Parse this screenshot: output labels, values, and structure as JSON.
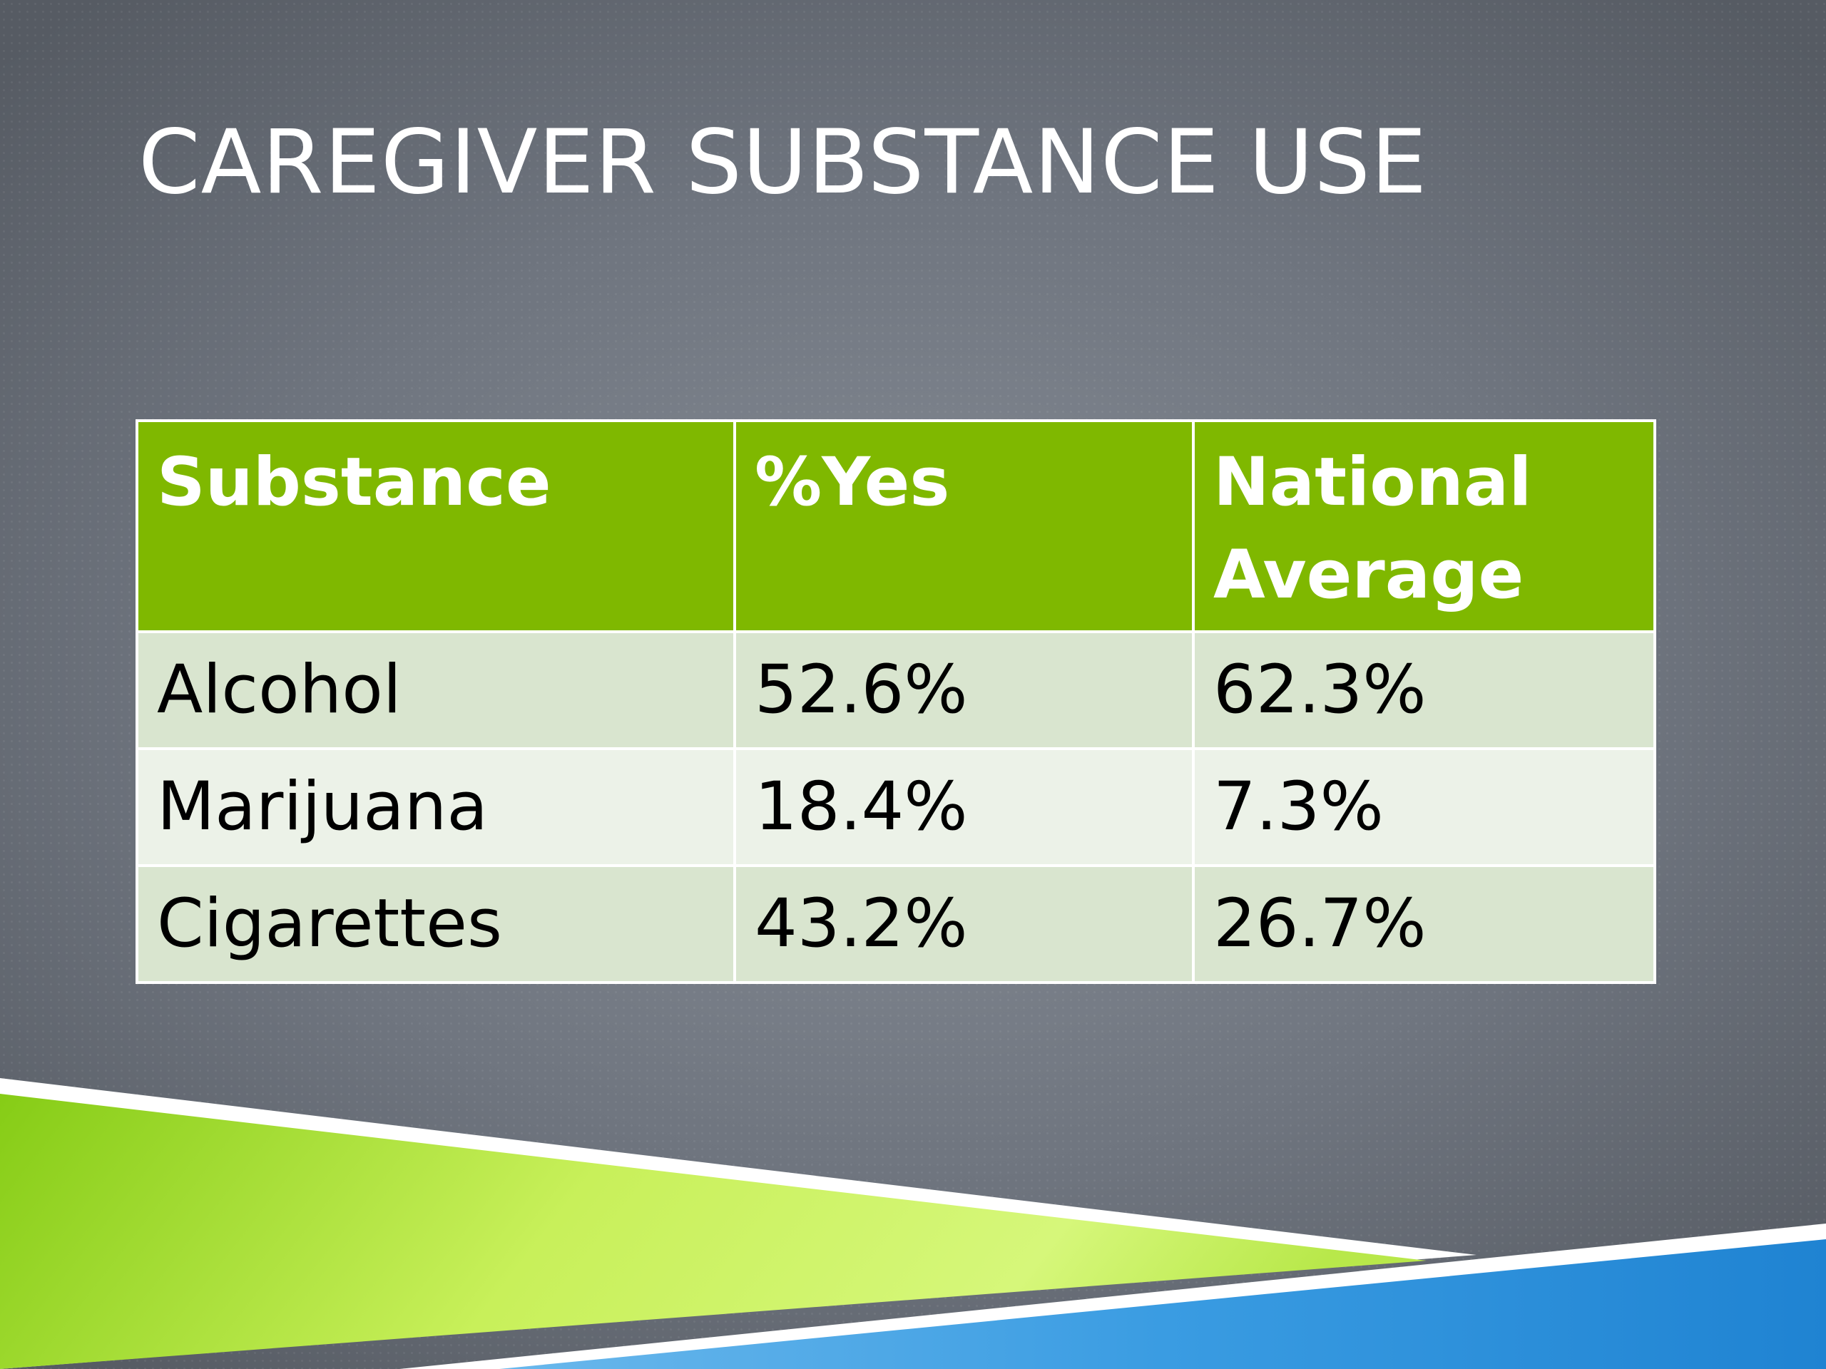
{
  "slide": {
    "title": "CAREGIVER SUBSTANCE USE"
  },
  "table": {
    "headers": [
      "Substance",
      "%Yes",
      "National Average"
    ],
    "rows": [
      [
        "Alcohol",
        "52.6%",
        "62.3%"
      ],
      [
        "Marijuana",
        "18.4%",
        "7.3%"
      ],
      [
        "Cigarettes",
        "43.2%",
        "26.7%"
      ]
    ]
  },
  "colors": {
    "background": "#6f757f",
    "header_fill": "#7fb800",
    "row_odd_fill": "#d9e5cf",
    "row_even_fill": "#ecf2e8",
    "accent_green": "#9ee02a",
    "accent_blue": "#2b8fd8"
  }
}
